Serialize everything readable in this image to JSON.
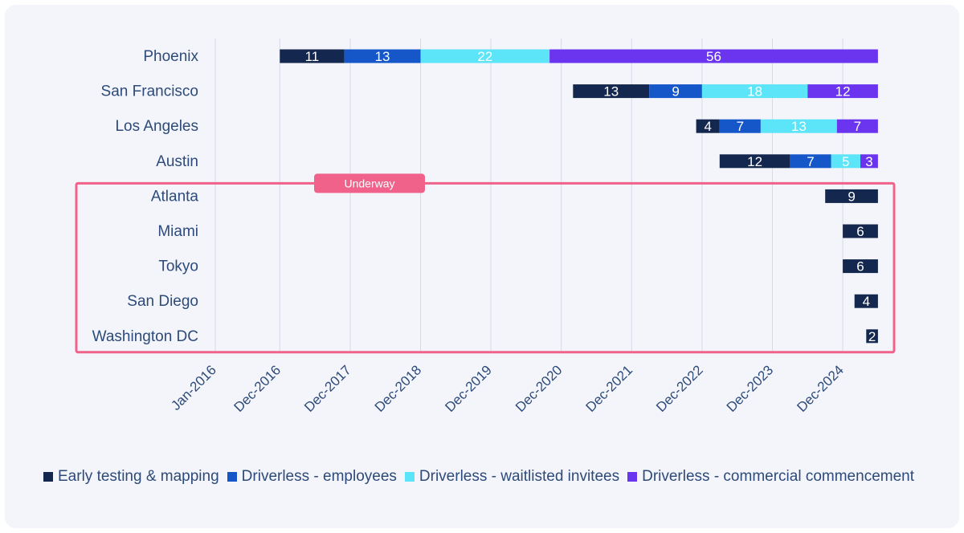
{
  "chart_data": {
    "type": "bar",
    "orientation": "horizontal-stacked-timeline",
    "x_axis": {
      "unit": "months since Jan-2016",
      "range": [
        0,
        107
      ],
      "ticks": [
        {
          "label": "Jan-2016",
          "value": 0
        },
        {
          "label": "Dec-2016",
          "value": 11
        },
        {
          "label": "Dec-2017",
          "value": 23
        },
        {
          "label": "Dec-2018",
          "value": 35
        },
        {
          "label": "Dec-2019",
          "value": 47
        },
        {
          "label": "Dec-2020",
          "value": 59
        },
        {
          "label": "Dec-2021",
          "value": 71
        },
        {
          "label": "Dec-2022",
          "value": 83
        },
        {
          "label": "Dec-2023",
          "value": 95
        },
        {
          "label": "Dec-2024",
          "value": 107
        }
      ]
    },
    "end_value": 113,
    "series": [
      {
        "name": "Early testing & mapping",
        "color": "#14284f"
      },
      {
        "name": "Driverless - employees",
        "color": "#1557c9"
      },
      {
        "name": "Driverless - waitlisted invitees",
        "color": "#5ce4f8"
      },
      {
        "name": "Driverless - commercial commencement",
        "color": "#6b35f0"
      }
    ],
    "categories": [
      "Phoenix",
      "San Francisco",
      "Los Angeles",
      "Austin",
      "Atlanta",
      "Miami",
      "Tokyo",
      "San Diego",
      "Washington DC"
    ],
    "rows": [
      {
        "city": "Phoenix",
        "durations": [
          11,
          13,
          22,
          56
        ]
      },
      {
        "city": "San Francisco",
        "durations": [
          13,
          9,
          18,
          12
        ]
      },
      {
        "city": "Los Angeles",
        "durations": [
          4,
          7,
          13,
          7
        ]
      },
      {
        "city": "Austin",
        "durations": [
          12,
          7,
          5,
          3
        ]
      },
      {
        "city": "Atlanta",
        "durations": [
          9
        ]
      },
      {
        "city": "Miami",
        "durations": [
          6
        ]
      },
      {
        "city": "Tokyo",
        "durations": [
          6
        ]
      },
      {
        "city": "San Diego",
        "durations": [
          4
        ]
      },
      {
        "city": "Washington DC",
        "durations": [
          2
        ]
      }
    ],
    "annotation": {
      "label": "Underway",
      "color": "#f0628a",
      "rows": [
        "Atlanta",
        "Miami",
        "Tokyo",
        "San Diego",
        "Washington DC"
      ]
    }
  }
}
